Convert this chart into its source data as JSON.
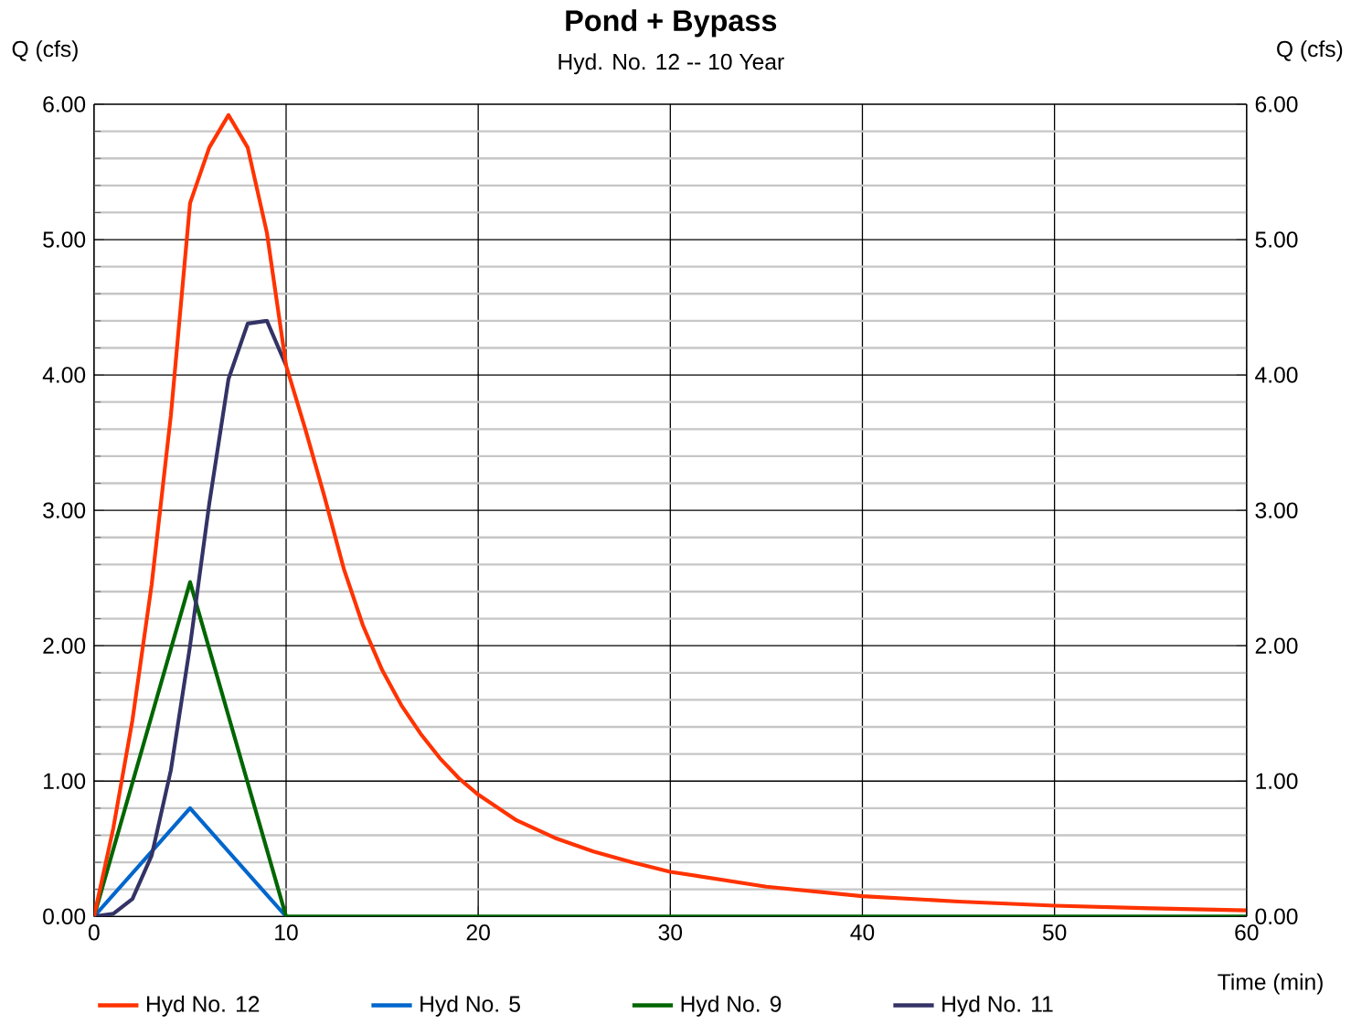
{
  "chart_data": {
    "type": "line",
    "title": "Pond + Bypass",
    "subtitle": "Hyd. No. 12 -- 10 Year",
    "xlabel": "Time (min)",
    "ylabel": "Q (cfs)",
    "y2label": "Q (cfs)",
    "xlim": [
      0,
      60
    ],
    "xticks": [
      0,
      10,
      20,
      30,
      40,
      50,
      60
    ],
    "ylim": [
      0,
      6
    ],
    "yticks": [
      {
        "value": 0,
        "label": "0.00"
      },
      {
        "value": 1,
        "label": "1.00"
      },
      {
        "value": 2,
        "label": "2.00"
      },
      {
        "value": 3,
        "label": "3.00"
      },
      {
        "value": 4,
        "label": "4.00"
      },
      {
        "value": 5,
        "label": "5.00"
      },
      {
        "value": 6,
        "label": "6.00"
      }
    ],
    "y2lim": [
      0,
      6
    ],
    "y2ticks": [
      {
        "value": 0,
        "label": "0.00"
      },
      {
        "value": 1,
        "label": "1.00"
      },
      {
        "value": 2,
        "label": "2.00"
      },
      {
        "value": 3,
        "label": "3.00"
      },
      {
        "value": 4,
        "label": "4.00"
      },
      {
        "value": 5,
        "label": "5.00"
      },
      {
        "value": 6,
        "label": "6.00"
      }
    ],
    "grid": true,
    "legend": "bottom",
    "marker": "none",
    "line_style": "solid",
    "series": [
      {
        "name": "Hyd No. 12",
        "color": "#ff3300",
        "x": [
          0,
          1,
          2,
          3,
          4,
          5,
          6,
          7,
          8,
          9,
          10,
          11,
          12,
          13,
          14,
          15,
          16,
          17,
          18,
          19,
          20,
          22,
          24,
          26,
          28,
          30,
          35,
          40,
          45,
          50,
          55,
          60
        ],
        "values": [
          0,
          0.65,
          1.45,
          2.45,
          3.7,
          5.27,
          5.68,
          5.92,
          5.68,
          5.05,
          4.07,
          3.6,
          3.1,
          2.57,
          2.15,
          1.82,
          1.56,
          1.35,
          1.17,
          1.02,
          0.9,
          0.71,
          0.58,
          0.48,
          0.4,
          0.33,
          0.22,
          0.15,
          0.11,
          0.08,
          0.06,
          0.045
        ]
      },
      {
        "name": "Hyd No. 5",
        "color": "#0066cc",
        "x": [
          0,
          5,
          10
        ],
        "values": [
          0,
          0.8,
          0
        ]
      },
      {
        "name": "Hyd No. 9",
        "color": "#006600",
        "x": [
          0,
          5,
          10,
          60
        ],
        "values": [
          0,
          2.47,
          0,
          0
        ]
      },
      {
        "name": "Hyd No. 11",
        "color": "#333366",
        "x": [
          0,
          1,
          2,
          3,
          4,
          5,
          6,
          7,
          8,
          9,
          10
        ],
        "values": [
          0,
          0.02,
          0.13,
          0.45,
          1.08,
          2.0,
          3.05,
          3.97,
          4.38,
          4.4,
          4.07
        ]
      }
    ]
  }
}
